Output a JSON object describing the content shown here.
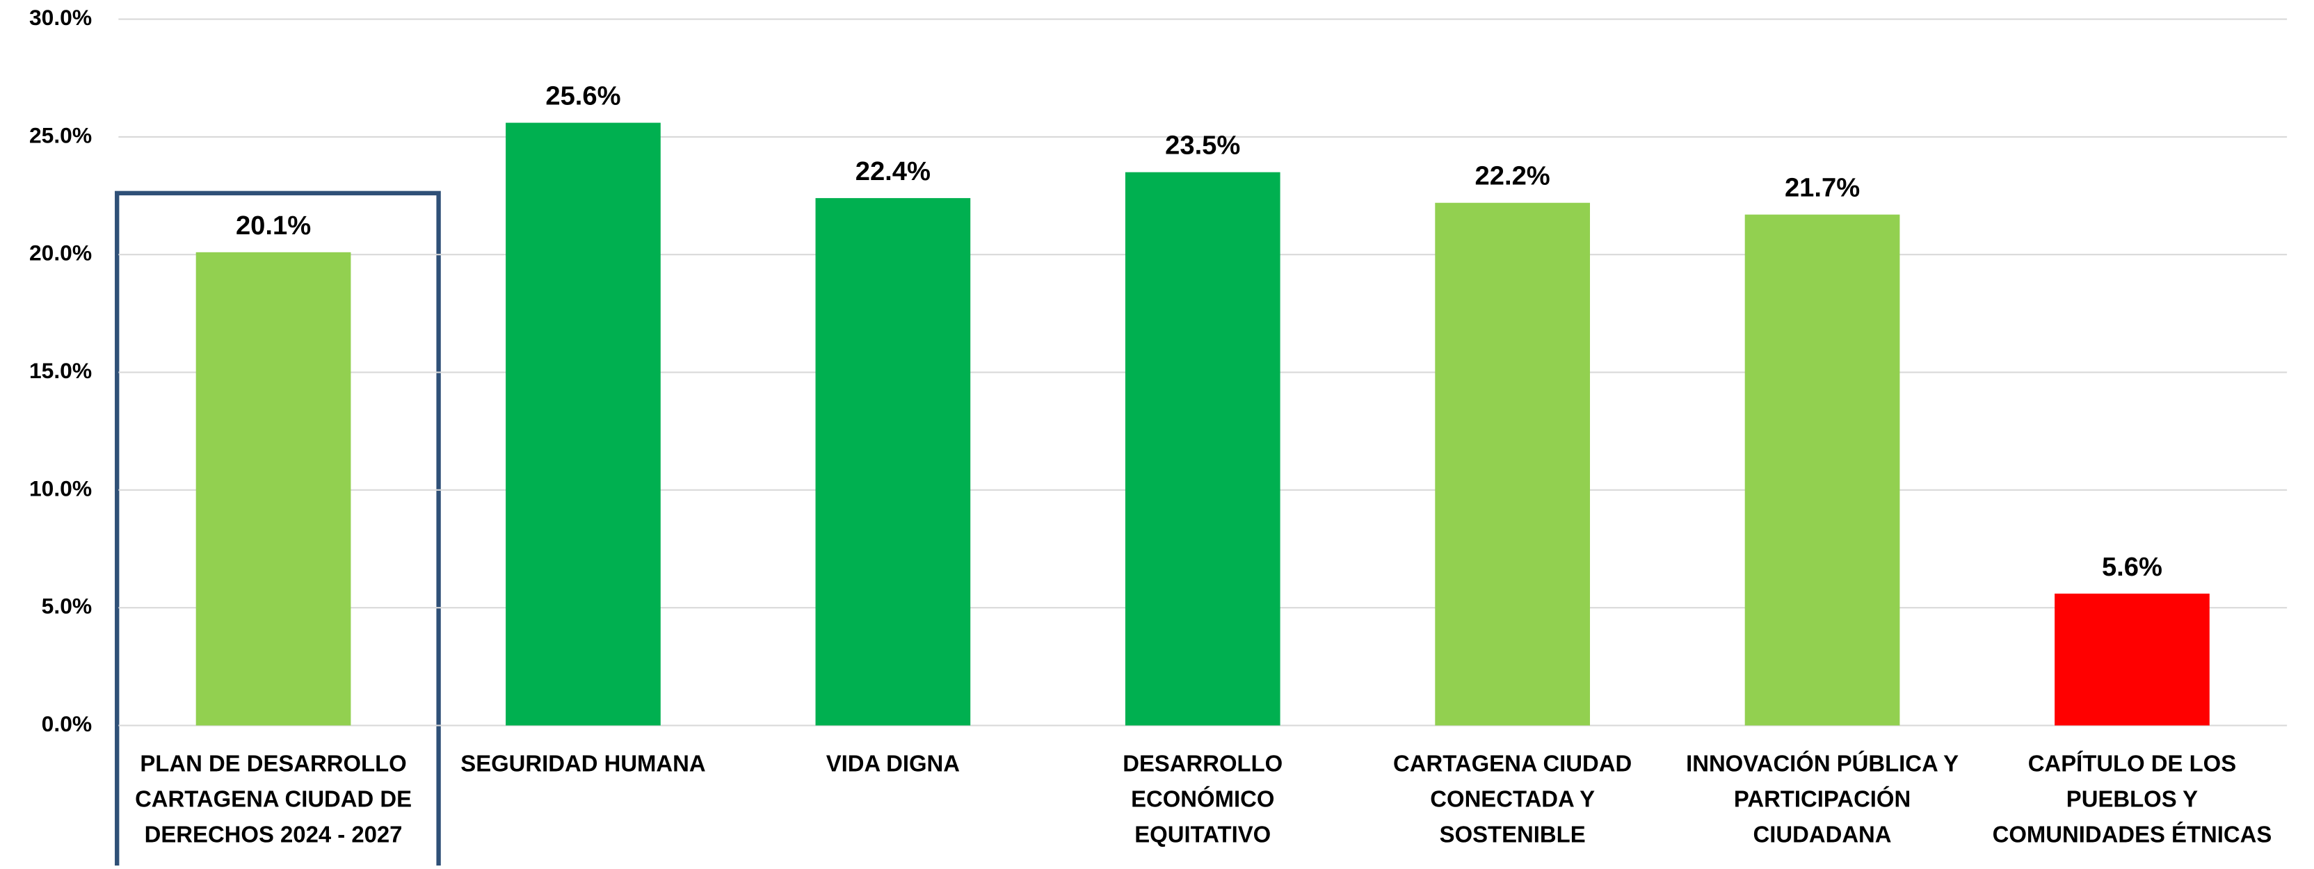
{
  "chart_data": {
    "type": "bar",
    "categories": [
      [
        "PLAN DE DESARROLLO",
        "CARTAGENA CIUDAD DE",
        "DERECHOS 2024 - 2027"
      ],
      [
        "SEGURIDAD HUMANA"
      ],
      [
        "VIDA DIGNA"
      ],
      [
        "DESARROLLO",
        "ECONÓMICO",
        "EQUITATIVO"
      ],
      [
        "CARTAGENA CIUDAD",
        "CONECTADA Y",
        "SOSTENIBLE"
      ],
      [
        "INNOVACIÓN PÚBLICA Y",
        "PARTICIPACIÓN",
        "CIUDADANA"
      ],
      [
        "CAPÍTULO DE LOS",
        "PUEBLOS Y",
        "COMUNIDADES ÉTNICAS"
      ]
    ],
    "values": [
      20.1,
      25.6,
      22.4,
      23.5,
      22.2,
      21.7,
      5.6
    ],
    "value_labels": [
      "20.1%",
      "25.6%",
      "22.4%",
      "23.5%",
      "22.2%",
      "21.7%",
      "5.6%"
    ],
    "colors": [
      "#92d050",
      "#00b050",
      "#00b050",
      "#00b050",
      "#92d050",
      "#92d050",
      "#ff0000"
    ],
    "ylim": [
      0,
      30
    ],
    "yticks": [
      {
        "value": 0,
        "label": "0.0%"
      },
      {
        "value": 5,
        "label": "5.0%"
      },
      {
        "value": 10,
        "label": "10.0%"
      },
      {
        "value": 15,
        "label": "15.0%"
      },
      {
        "value": 20,
        "label": "20.0%"
      },
      {
        "value": 25,
        "label": "25.0%"
      },
      {
        "value": 30,
        "label": "30.0%"
      }
    ],
    "grid": true
  }
}
